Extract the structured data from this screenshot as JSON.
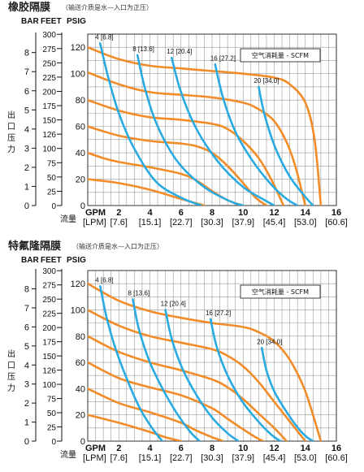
{
  "colors": {
    "head_curve": "#f28c28",
    "air_curve": "#29abe2",
    "grid": "#999999",
    "frame": "#333333"
  },
  "chart_data": [
    {
      "type": "line",
      "title": "橡胶隔膜",
      "subtitle": "（输送介质是水—入口为正压）",
      "unit_headers": {
        "bar": "BAR",
        "feet": "FEET",
        "psig": "PSIG"
      },
      "ylabel": "出口压力",
      "xlabel": "流量",
      "x_axis_head": "GPM",
      "x_axis_head_alt": "[LPM]",
      "legend": "空气消耗量 - SCFM",
      "xlim": [
        0,
        16
      ],
      "ylim": [
        0,
        130
      ],
      "x_ticks": [
        "2",
        "4",
        "6",
        "8",
        "10",
        "12",
        "14",
        "16"
      ],
      "x_ticks_alt": [
        "[7.6]",
        "[15.1]",
        "[22.7]",
        "[30.3]",
        "[37.9]",
        "[45.4]",
        "[53.0]",
        "[60.6]"
      ],
      "bar_ticks": [
        "8",
        "7",
        "6",
        "5",
        "4",
        "3",
        "2",
        "1",
        "0"
      ],
      "feet_ticks": [
        "300",
        "275",
        "250",
        "225",
        "200",
        "175",
        "150",
        "126",
        "100",
        "75",
        "50",
        "25",
        "0"
      ],
      "psig_ticks": [
        "120",
        "100",
        "80",
        "60",
        "40",
        "20",
        "0"
      ],
      "head_series": [
        {
          "values": [
            [
              0,
              120
            ],
            [
              2,
              111
            ],
            [
              4,
              106
            ],
            [
              6,
              104
            ],
            [
              8,
              102
            ],
            [
              10,
              100
            ],
            [
              12,
              97
            ],
            [
              13,
              92
            ],
            [
              14,
              78
            ],
            [
              14.6,
              50
            ],
            [
              15,
              0
            ]
          ]
        },
        {
          "values": [
            [
              0,
              101
            ],
            [
              2,
              92
            ],
            [
              4,
              86
            ],
            [
              6,
              84
            ],
            [
              8,
              82
            ],
            [
              10,
              78
            ],
            [
              11,
              73
            ],
            [
              12,
              64
            ],
            [
              12.8,
              48
            ],
            [
              13.4,
              28
            ],
            [
              14,
              0
            ]
          ]
        },
        {
          "values": [
            [
              0,
              80
            ],
            [
              2,
              72
            ],
            [
              4,
              67
            ],
            [
              6,
              65
            ],
            [
              8,
              62
            ],
            [
              9,
              58
            ],
            [
              10,
              49
            ],
            [
              11,
              36
            ],
            [
              11.8,
              20
            ],
            [
              12.6,
              0
            ]
          ]
        },
        {
          "values": [
            [
              0,
              60
            ],
            [
              2,
              53
            ],
            [
              4,
              49
            ],
            [
              6,
              47
            ],
            [
              7,
              45
            ],
            [
              8,
              40
            ],
            [
              9,
              30
            ],
            [
              10,
              17
            ],
            [
              10.8,
              6
            ],
            [
              11.5,
              0
            ]
          ]
        },
        {
          "values": [
            [
              0,
              40
            ],
            [
              1,
              36
            ],
            [
              2,
              33
            ],
            [
              4,
              29
            ],
            [
              6,
              24
            ],
            [
              7,
              19
            ],
            [
              8,
              11
            ],
            [
              9,
              4
            ],
            [
              10,
              0
            ]
          ]
        },
        {
          "values": [
            [
              0,
              20
            ],
            [
              2,
              17
            ],
            [
              4,
              12
            ],
            [
              6,
              5
            ],
            [
              7.5,
              0
            ]
          ]
        }
      ],
      "air_series": [
        {
          "name": "4 [6.8]",
          "values": [
            [
              0.8,
              123
            ],
            [
              1.3,
              98
            ],
            [
              2,
              70
            ],
            [
              3,
              43
            ],
            [
              4.4,
              18
            ],
            [
              6,
              6
            ],
            [
              7.3,
              0
            ]
          ]
        },
        {
          "name": "8 [13.6]",
          "values": [
            [
              3.2,
              114
            ],
            [
              3.7,
              88
            ],
            [
              4.5,
              60
            ],
            [
              5.8,
              33
            ],
            [
              7.5,
              14
            ],
            [
              9.2,
              3
            ],
            [
              10,
              0
            ]
          ]
        },
        {
          "name": "12 [20.4]",
          "values": [
            [
              5.4,
              112
            ],
            [
              6,
              86
            ],
            [
              7,
              58
            ],
            [
              8.4,
              33
            ],
            [
              10,
              14
            ],
            [
              11.4,
              4
            ],
            [
              12,
              0
            ]
          ]
        },
        {
          "name": "16 [27.2]",
          "values": [
            [
              8.2,
              107
            ],
            [
              8.7,
              82
            ],
            [
              9.5,
              56
            ],
            [
              10.6,
              34
            ],
            [
              11.8,
              16
            ],
            [
              12.8,
              5
            ],
            [
              13.5,
              0
            ]
          ]
        },
        {
          "name": "20 [34.0]",
          "values": [
            [
              11,
              90
            ],
            [
              11.4,
              68
            ],
            [
              12.1,
              43
            ],
            [
              13,
              22
            ],
            [
              13.9,
              8
            ],
            [
              14.5,
              0
            ]
          ]
        }
      ]
    },
    {
      "type": "line",
      "title": "特氟隆隔膜",
      "subtitle": "（输送介质是水—入口为正压）",
      "unit_headers": {
        "bar": "BAR",
        "feet": "FEET",
        "psig": "PSIG"
      },
      "ylabel": "出口压力",
      "xlabel": "流量",
      "x_axis_head": "GPM",
      "x_axis_head_alt": "[LPM]",
      "legend": "空气消耗量 - SCFM",
      "xlim": [
        0,
        16
      ],
      "ylim": [
        0,
        130
      ],
      "x_ticks": [
        "2",
        "4",
        "6",
        "8",
        "10",
        "12",
        "14",
        "16"
      ],
      "x_ticks_alt": [
        "[7.6]",
        "[15.1]",
        "[22.7]",
        "[30.3]",
        "[37.9]",
        "[45.4]",
        "[53.0]",
        "[60.6]"
      ],
      "bar_ticks": [
        "8",
        "7",
        "6",
        "5",
        "4",
        "3",
        "2",
        "1",
        "0"
      ],
      "feet_ticks": [
        "300",
        "275",
        "250",
        "225",
        "200",
        "175",
        "150",
        "126",
        "100",
        "75",
        "50",
        "25",
        "0"
      ],
      "psig_ticks": [
        "120",
        "100",
        "80",
        "60",
        "40",
        "20",
        "0"
      ],
      "head_series": [
        {
          "values": [
            [
              0,
              120
            ],
            [
              2,
              107
            ],
            [
              4,
              99
            ],
            [
              6,
              94
            ],
            [
              8,
              90
            ],
            [
              10,
              87
            ],
            [
              11,
              83
            ],
            [
              12,
              76
            ],
            [
              13,
              62
            ],
            [
              14,
              38
            ],
            [
              15,
              0
            ]
          ]
        },
        {
          "values": [
            [
              0,
              100
            ],
            [
              2,
              88
            ],
            [
              4,
              80
            ],
            [
              6,
              75
            ],
            [
              8,
              70
            ],
            [
              9,
              65
            ],
            [
              10,
              57
            ],
            [
              11,
              45
            ],
            [
              12,
              30
            ],
            [
              13,
              15
            ],
            [
              14,
              0
            ]
          ]
        },
        {
          "values": [
            [
              0,
              80
            ],
            [
              2,
              68
            ],
            [
              4,
              60
            ],
            [
              6,
              54
            ],
            [
              8,
              47
            ],
            [
              9,
              41
            ],
            [
              10,
              32
            ],
            [
              11,
              21
            ],
            [
              12,
              10
            ],
            [
              12.8,
              0
            ]
          ]
        },
        {
          "values": [
            [
              0,
              60
            ],
            [
              2,
              48
            ],
            [
              4,
              41
            ],
            [
              6,
              35
            ],
            [
              8,
              25
            ],
            [
              9,
              17
            ],
            [
              10,
              9
            ],
            [
              10.8,
              3
            ],
            [
              11.3,
              0
            ]
          ]
        },
        {
          "values": [
            [
              0,
              40
            ],
            [
              2,
              29
            ],
            [
              4,
              22
            ],
            [
              6,
              14
            ],
            [
              7,
              8
            ],
            [
              8,
              3
            ],
            [
              8.7,
              0
            ]
          ]
        },
        {
          "values": [
            [
              0,
              20
            ],
            [
              2,
              14
            ],
            [
              4,
              7
            ],
            [
              5,
              3
            ],
            [
              6,
              0
            ]
          ]
        }
      ],
      "air_series": [
        {
          "name": "4 [6.8]",
          "values": [
            [
              0.8,
              118
            ],
            [
              1.2,
              95
            ],
            [
              1.8,
              70
            ],
            [
              2.6,
              45
            ],
            [
              3.4,
              24
            ],
            [
              4.2,
              9
            ],
            [
              4.8,
              0
            ]
          ]
        },
        {
          "name": "8 [13.6]",
          "values": [
            [
              2.9,
              108
            ],
            [
              3.3,
              85
            ],
            [
              4,
              60
            ],
            [
              4.9,
              38
            ],
            [
              5.8,
              20
            ],
            [
              6.6,
              7
            ],
            [
              7.2,
              0
            ]
          ]
        },
        {
          "name": "12 [20.4]",
          "values": [
            [
              5,
              100
            ],
            [
              5.4,
              78
            ],
            [
              6.1,
              55
            ],
            [
              7,
              35
            ],
            [
              8,
              18
            ],
            [
              9,
              6
            ],
            [
              9.7,
              0
            ]
          ]
        },
        {
          "name": "16 [27.2]",
          "values": [
            [
              7.9,
              93
            ],
            [
              8.3,
              72
            ],
            [
              9,
              50
            ],
            [
              9.9,
              31
            ],
            [
              10.9,
              16
            ],
            [
              11.8,
              5
            ],
            [
              12.4,
              0
            ]
          ]
        },
        {
          "name": "20 [34.0]",
          "values": [
            [
              11.2,
              71
            ],
            [
              11.5,
              54
            ],
            [
              12,
              38
            ],
            [
              12.7,
              24
            ],
            [
              13.4,
              12
            ],
            [
              14,
              4
            ],
            [
              14.5,
              0
            ]
          ]
        }
      ]
    }
  ]
}
